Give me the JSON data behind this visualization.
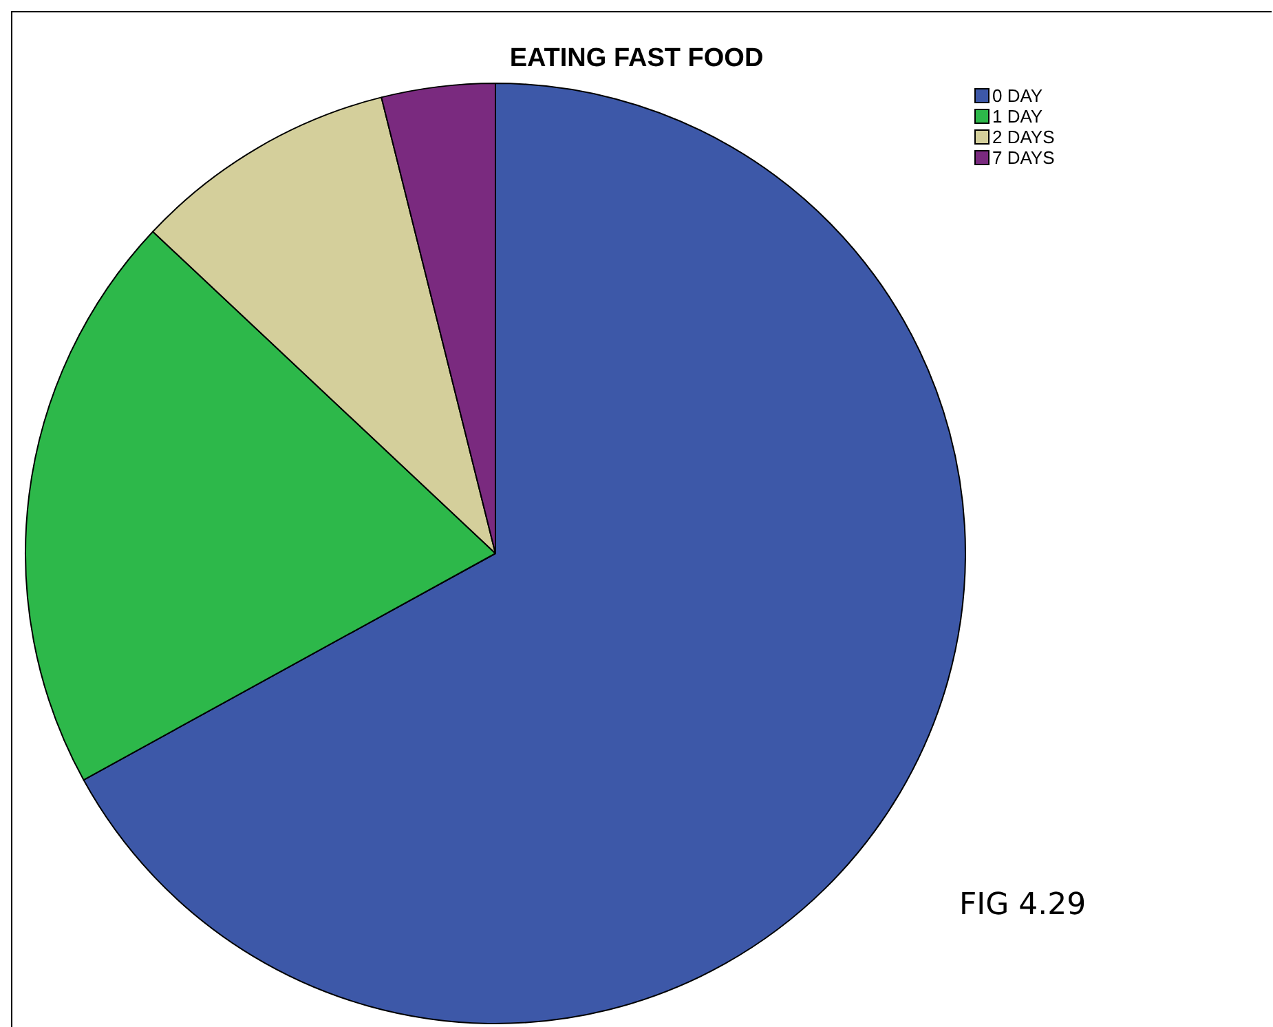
{
  "chart_data": {
    "type": "pie",
    "title": "EATING FAST FOOD",
    "categories": [
      "0 DAY",
      "1 DAY",
      "2 DAYS",
      "7 DAYS"
    ],
    "values": [
      67,
      20,
      9.1,
      3.9
    ],
    "colors": [
      "#3d58a8",
      "#2db84a",
      "#d4cf9b",
      "#7a2a7f"
    ],
    "legend": "top right",
    "annotations": [
      "FIG 4.29"
    ]
  }
}
